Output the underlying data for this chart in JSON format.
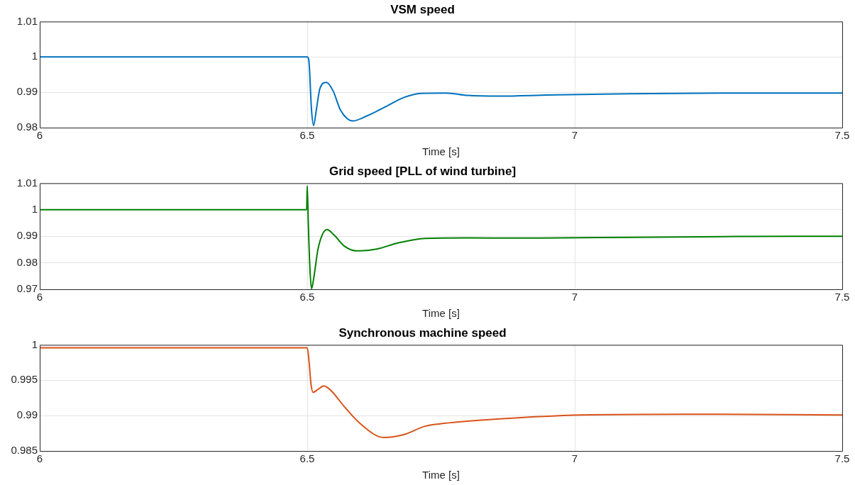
{
  "chart_data": [
    {
      "type": "line",
      "title": "VSM speed",
      "xlabel": "Time [s]",
      "xlim": [
        6,
        7.5
      ],
      "xticks": [
        6,
        6.5,
        7,
        7.5
      ],
      "ylim": [
        0.98,
        1.01
      ],
      "yticks": [
        0.98,
        0.99,
        1,
        1.01
      ],
      "grid": true,
      "x": [
        6,
        6.5,
        6.503,
        6.508,
        6.512,
        6.517,
        6.524,
        6.536,
        6.548,
        6.562,
        6.575,
        6.585,
        6.61,
        6.65,
        6.68,
        6.712,
        6.76,
        6.8,
        6.86,
        6.95,
        7.1,
        7.3,
        7.5
      ],
      "series": [
        {
          "color": "#0072bd",
          "values": [
            1.0,
            1.0,
            0.999,
            0.985,
            0.9806,
            0.985,
            0.9912,
            0.9928,
            0.9905,
            0.985,
            0.9825,
            0.9819,
            0.9832,
            0.9862,
            0.9885,
            0.9897,
            0.9898,
            0.9891,
            0.9889,
            0.9892,
            0.9896,
            0.9898,
            0.9898
          ]
        }
      ]
    },
    {
      "type": "line",
      "title": "Grid speed [PLL of wind turbine]",
      "xlabel": "Time [s]",
      "xlim": [
        6,
        7.5
      ],
      "xticks": [
        6,
        6.5,
        7,
        7.5
      ],
      "ylim": [
        0.97,
        1.01
      ],
      "yticks": [
        0.97,
        0.98,
        0.99,
        1,
        1.01
      ],
      "grid": true,
      "x": [
        6,
        6.499,
        6.5,
        6.502,
        6.505,
        6.508,
        6.512,
        6.52,
        6.528,
        6.537,
        6.55,
        6.57,
        6.592,
        6.63,
        6.67,
        6.72,
        6.8,
        6.9,
        7.1,
        7.3,
        7.5
      ],
      "series": [
        {
          "color": "#008000",
          "values": [
            1.0,
            1.0,
            1.009,
            0.995,
            0.978,
            0.9702,
            0.974,
            0.985,
            0.9905,
            0.9925,
            0.9905,
            0.9862,
            0.9845,
            0.9852,
            0.9875,
            0.9892,
            0.9894,
            0.9893,
            0.9896,
            0.9899,
            0.99
          ]
        }
      ]
    },
    {
      "type": "line",
      "title": "Synchronous machine speed",
      "xlabel": "Time [s]",
      "xlim": [
        6,
        7.5
      ],
      "xticks": [
        6,
        6.5,
        7,
        7.5
      ],
      "ylim": [
        0.985,
        1
      ],
      "yticks": [
        0.985,
        0.99,
        0.995,
        1
      ],
      "grid": true,
      "x": [
        6,
        6.5,
        6.503,
        6.507,
        6.511,
        6.52,
        6.531,
        6.545,
        6.57,
        6.6,
        6.643,
        6.68,
        6.72,
        6.756,
        6.854,
        7.013,
        7.2,
        7.5
      ],
      "series": [
        {
          "color": "#d95319",
          "values": [
            0.9996,
            0.9996,
            0.998,
            0.9945,
            0.9933,
            0.9937,
            0.9942,
            0.9935,
            0.9912,
            0.9888,
            0.9869,
            0.9873,
            0.9885,
            0.9889,
            0.9895,
            0.9901,
            0.9902,
            0.9901
          ]
        }
      ]
    }
  ]
}
